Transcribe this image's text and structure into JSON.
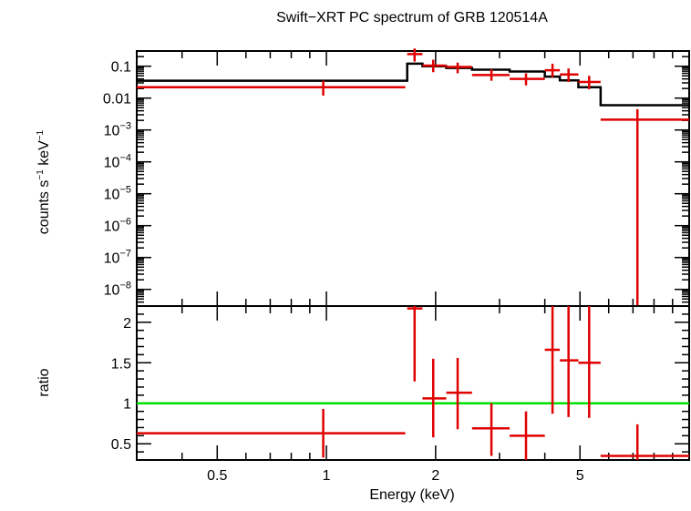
{
  "chart_data": [
    {
      "type": "line",
      "title": "Swift−XRT PC spectrum of GRB 120514A",
      "ylabel_main": "counts s",
      "ylabel_sup1": "−1",
      "ylabel_mid": " keV",
      "ylabel_sup2": "−1",
      "xscale": "log",
      "yscale": "log",
      "xlim": [
        0.3,
        10
      ],
      "ylim": [
        3e-09,
        0.3
      ],
      "y_ticks": [
        {
          "v": 0.1,
          "label": "0.1"
        },
        {
          "v": 0.01,
          "label": "0.01"
        },
        {
          "v": 0.001,
          "base": "10",
          "exp": "−3"
        },
        {
          "v": 0.0001,
          "base": "10",
          "exp": "−4"
        },
        {
          "v": 1e-05,
          "base": "10",
          "exp": "−5"
        },
        {
          "v": 1e-06,
          "base": "10",
          "exp": "−6"
        },
        {
          "v": 1e-07,
          "base": "10",
          "exp": "−7"
        },
        {
          "v": 1e-08,
          "base": "10",
          "exp": "−8"
        }
      ],
      "series": [
        {
          "kind": "data",
          "color": "#e00000",
          "points": [
            {
              "x": 0.98,
              "xlo": 0.3,
              "xhi": 1.65,
              "y": 0.022,
              "ylo": 0.012,
              "yhi": 0.035
            },
            {
              "x": 1.75,
              "xlo": 1.67,
              "xhi": 1.84,
              "y": 0.24,
              "ylo": 0.14,
              "yhi": 0.36
            },
            {
              "x": 1.97,
              "xlo": 1.84,
              "xhi": 2.14,
              "y": 0.105,
              "ylo": 0.065,
              "yhi": 0.16
            },
            {
              "x": 2.3,
              "xlo": 2.14,
              "xhi": 2.52,
              "y": 0.095,
              "ylo": 0.06,
              "yhi": 0.13
            },
            {
              "x": 2.85,
              "xlo": 2.52,
              "xhi": 3.2,
              "y": 0.053,
              "ylo": 0.035,
              "yhi": 0.08
            },
            {
              "x": 3.55,
              "xlo": 3.2,
              "xhi": 4.0,
              "y": 0.04,
              "ylo": 0.025,
              "yhi": 0.06
            },
            {
              "x": 4.2,
              "xlo": 4.0,
              "xhi": 4.4,
              "y": 0.075,
              "ylo": 0.045,
              "yhi": 0.12
            },
            {
              "x": 4.65,
              "xlo": 4.4,
              "xhi": 4.95,
              "y": 0.055,
              "ylo": 0.032,
              "yhi": 0.085
            },
            {
              "x": 5.3,
              "xlo": 4.95,
              "xhi": 5.7,
              "y": 0.032,
              "ylo": 0.019,
              "yhi": 0.05
            },
            {
              "x": 7.2,
              "xlo": 5.7,
              "xhi": 10,
              "y": 0.0021,
              "ylo": 1e-10,
              "yhi": 0.0045
            }
          ]
        },
        {
          "kind": "model",
          "color": "#000000",
          "steps": [
            {
              "xlo": 0.3,
              "xhi": 1.67,
              "y": 0.035
            },
            {
              "xlo": 1.67,
              "xhi": 1.84,
              "y": 0.12
            },
            {
              "xlo": 1.84,
              "xhi": 2.14,
              "y": 0.1
            },
            {
              "xlo": 2.14,
              "xhi": 2.52,
              "y": 0.088
            },
            {
              "xlo": 2.52,
              "xhi": 3.2,
              "y": 0.078
            },
            {
              "xlo": 3.2,
              "xhi": 4.0,
              "y": 0.068
            },
            {
              "xlo": 4.0,
              "xhi": 4.4,
              "y": 0.047
            },
            {
              "xlo": 4.4,
              "xhi": 4.95,
              "y": 0.036
            },
            {
              "xlo": 4.95,
              "xhi": 5.7,
              "y": 0.022
            },
            {
              "xlo": 5.7,
              "xhi": 10,
              "y": 0.006
            }
          ]
        }
      ]
    },
    {
      "type": "line",
      "ylabel": "ratio",
      "xlabel": "Energy (keV)",
      "xscale": "log",
      "xlim": [
        0.3,
        10
      ],
      "ylim": [
        0.3,
        2.2
      ],
      "x_ticks": [
        {
          "v": 0.5,
          "label": "0.5"
        },
        {
          "v": 1,
          "label": "1"
        },
        {
          "v": 2,
          "label": "2"
        },
        {
          "v": 5,
          "label": "5"
        }
      ],
      "y_ticks": [
        {
          "v": 0.5,
          "label": "0.5"
        },
        {
          "v": 1,
          "label": "1"
        },
        {
          "v": 1.5,
          "label": "1.5"
        },
        {
          "v": 2,
          "label": "2"
        }
      ],
      "reference_line": {
        "y": 1,
        "color": "#00e000"
      },
      "series": [
        {
          "kind": "ratio",
          "color": "#e00000",
          "points": [
            {
              "x": 0.98,
              "xlo": 0.3,
              "xhi": 1.65,
              "y": 0.63,
              "ylo": 0.33,
              "yhi": 0.93
            },
            {
              "x": 1.75,
              "xlo": 1.67,
              "xhi": 1.84,
              "y": 2.17,
              "ylo": 1.27,
              "yhi": 2.2
            },
            {
              "x": 1.97,
              "xlo": 1.84,
              "xhi": 2.14,
              "y": 1.06,
              "ylo": 0.58,
              "yhi": 1.55
            },
            {
              "x": 2.3,
              "xlo": 2.14,
              "xhi": 2.52,
              "y": 1.13,
              "ylo": 0.68,
              "yhi": 1.56
            },
            {
              "x": 2.85,
              "xlo": 2.52,
              "xhi": 3.2,
              "y": 0.69,
              "ylo": 0.35,
              "yhi": 1.0
            },
            {
              "x": 3.55,
              "xlo": 3.2,
              "xhi": 4.0,
              "y": 0.6,
              "ylo": 0.3,
              "yhi": 0.9
            },
            {
              "x": 4.2,
              "xlo": 4.0,
              "xhi": 4.4,
              "y": 1.66,
              "ylo": 0.87,
              "yhi": 2.2
            },
            {
              "x": 4.65,
              "xlo": 4.4,
              "xhi": 4.95,
              "y": 1.53,
              "ylo": 0.83,
              "yhi": 2.2
            },
            {
              "x": 5.3,
              "xlo": 4.95,
              "xhi": 5.7,
              "y": 1.5,
              "ylo": 0.82,
              "yhi": 2.2
            },
            {
              "x": 7.2,
              "xlo": 5.7,
              "xhi": 10,
              "y": 0.35,
              "ylo": 0.3,
              "yhi": 0.74
            }
          ]
        }
      ]
    }
  ]
}
